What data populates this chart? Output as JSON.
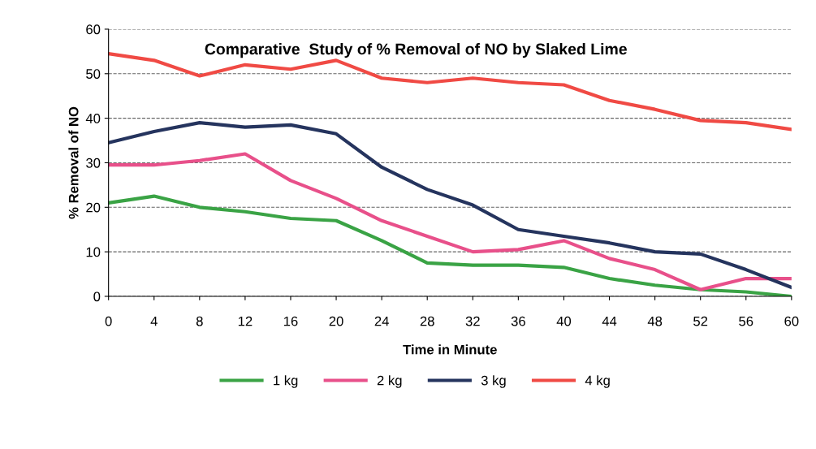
{
  "chart_data": {
    "type": "line",
    "title": "Comparative  Study of % Removal of NO by Slaked Lime",
    "xlabel": "Time in Minute",
    "ylabel": "% Removal of NO",
    "x": [
      0,
      4,
      8,
      12,
      16,
      20,
      24,
      28,
      32,
      36,
      40,
      44,
      48,
      52,
      56,
      60
    ],
    "xlim": [
      0,
      60
    ],
    "xticks": [
      0,
      4,
      8,
      12,
      16,
      20,
      24,
      28,
      32,
      36,
      40,
      44,
      48,
      52,
      56,
      60
    ],
    "ylim": [
      0,
      60
    ],
    "yticks": [
      0,
      10,
      20,
      30,
      40,
      50,
      60
    ],
    "grid": "y",
    "legend": "bottom",
    "marker": "none",
    "line_style": "solid",
    "series": [
      {
        "name": "1 kg",
        "color": "#3aa345",
        "values": [
          21,
          22.5,
          20,
          19,
          17.5,
          17,
          12.5,
          7.5,
          7,
          7,
          6.5,
          4,
          2.5,
          1.5,
          1,
          0
        ]
      },
      {
        "name": "2 kg",
        "color": "#e8508a",
        "values": [
          29.5,
          29.5,
          30.5,
          32,
          26,
          22,
          17,
          13.5,
          10,
          10.5,
          12.5,
          8.5,
          6,
          1.5,
          4,
          4
        ]
      },
      {
        "name": "3 kg",
        "color": "#25345e",
        "values": [
          34.5,
          37,
          39,
          38,
          38.5,
          36.5,
          29,
          24,
          20.5,
          15,
          13.5,
          12,
          10,
          9.5,
          6,
          2
        ]
      },
      {
        "name": "4 kg",
        "color": "#f04a44",
        "values": [
          54.5,
          53,
          49.5,
          52,
          51,
          53,
          49,
          48,
          49,
          48,
          47.5,
          44,
          42,
          39.5,
          39,
          37.5
        ]
      }
    ]
  }
}
